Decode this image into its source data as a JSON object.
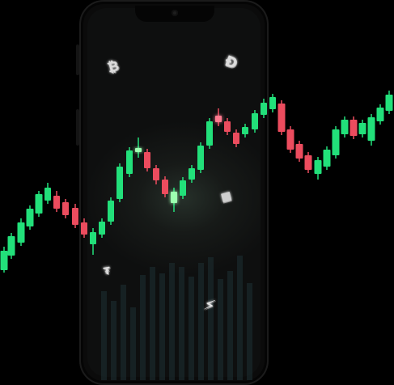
{
  "colors": {
    "bullish": "#22e07a",
    "bearish": "#ec4c5e",
    "glow_green": "#9dffb0",
    "glow_red": "#ff7a8f",
    "background": "#000000"
  },
  "icons": {
    "bitcoin": "₿",
    "dogecoin": "Ð",
    "ethereum": "◆",
    "tether": "₮",
    "lightning": "⚡"
  }
}
